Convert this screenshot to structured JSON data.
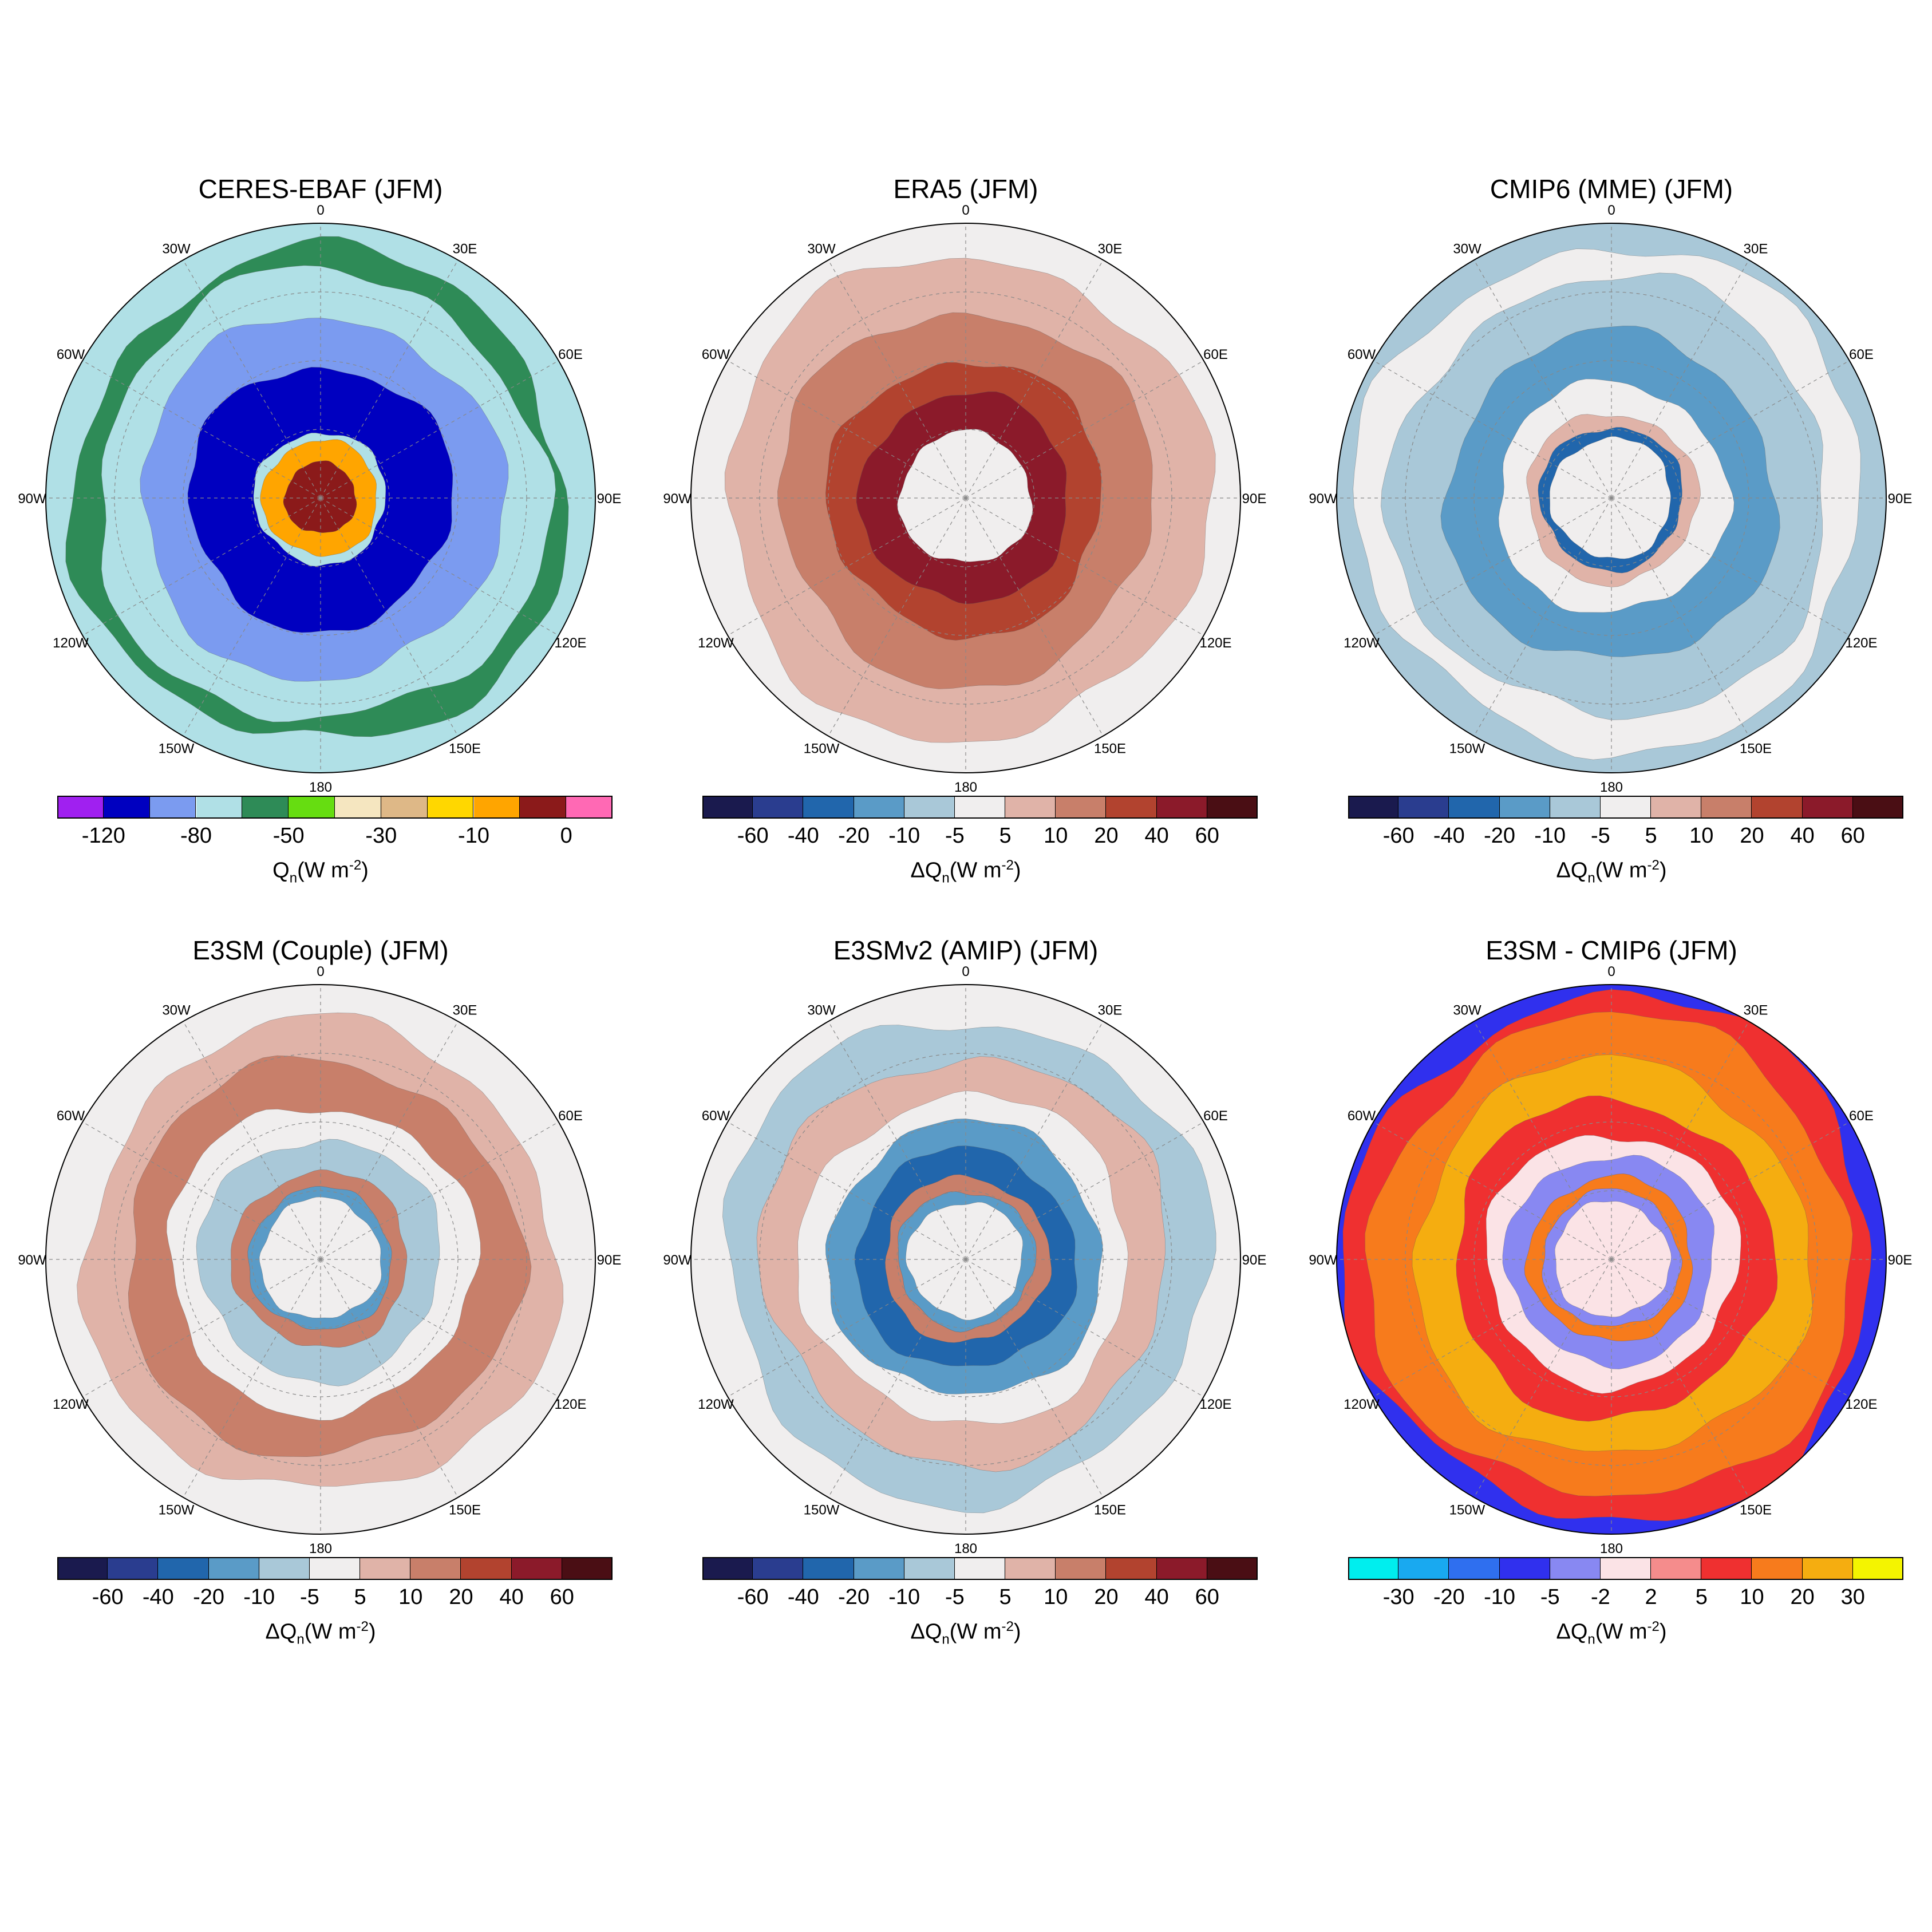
{
  "panels": [
    {
      "id": "ceres",
      "title": "CERES-EBAF  (JFM)",
      "units_prefix": "",
      "colors": [
        "#a020f0",
        "#0000c0",
        "#7b9bf0",
        "#b0e0e6",
        "#2e8b57",
        "#66dd11",
        "#f5e6c0",
        "#deb887",
        "#ffd700",
        "#ffa500",
        "#8b1a1a",
        "#ff69b4"
      ],
      "ticks": [
        {
          "label": "-120",
          "at": 1
        },
        {
          "label": "-80",
          "at": 3
        },
        {
          "label": "-50",
          "at": 5
        },
        {
          "label": "-30",
          "at": 7
        },
        {
          "label": "-10",
          "at": 9
        },
        {
          "label": "0",
          "at": 11
        }
      ],
      "rings": [
        {
          "r": 1.0,
          "c": "#b0e0e6"
        },
        {
          "r": 0.9,
          "c": "#2e8b57"
        },
        {
          "r": 0.82,
          "c": "#b0e0e6"
        },
        {
          "r": 0.66,
          "c": "#7b9bf0"
        },
        {
          "r": 0.48,
          "c": "#0000c0"
        },
        {
          "r": 0.24,
          "c": "#b0e0e6"
        },
        {
          "r": 0.21,
          "c": "#ffa500"
        },
        {
          "r": 0.13,
          "c": "#8b1a1a"
        }
      ]
    },
    {
      "id": "era5",
      "title": "ERA5  (JFM)",
      "units_prefix": "Δ",
      "colors": [
        "#1a1a4e",
        "#2a3d8f",
        "#2166ac",
        "#5a9bc7",
        "#a9c8d8",
        "#f0eeee",
        "#e0b3a8",
        "#c87f6a",
        "#b2432f",
        "#8b1a2a",
        "#4a0e14"
      ],
      "ticks": [
        {
          "label": "-60",
          "at": 1
        },
        {
          "label": "-40",
          "at": 2
        },
        {
          "label": "-20",
          "at": 3
        },
        {
          "label": "-10",
          "at": 4
        },
        {
          "label": "-5",
          "at": 5
        },
        {
          "label": "5",
          "at": 6
        },
        {
          "label": "10",
          "at": 7
        },
        {
          "label": "20",
          "at": 8
        },
        {
          "label": "40",
          "at": 9
        },
        {
          "label": "60",
          "at": 10
        }
      ],
      "rings": [
        {
          "r": 1.0,
          "c": "#f0eeee"
        },
        {
          "r": 0.88,
          "c": "#e0b3a8"
        },
        {
          "r": 0.68,
          "c": "#c87f6a"
        },
        {
          "r": 0.5,
          "c": "#b2432f"
        },
        {
          "r": 0.38,
          "c": "#8b1a2a"
        },
        {
          "r": 0.24,
          "c": "#f0eeee"
        }
      ]
    },
    {
      "id": "cmip6",
      "title": "CMIP6 (MME)  (JFM)",
      "units_prefix": "Δ",
      "colors": [
        "#1a1a4e",
        "#2a3d8f",
        "#2166ac",
        "#5a9bc7",
        "#a9c8d8",
        "#f0eeee",
        "#e0b3a8",
        "#c87f6a",
        "#b2432f",
        "#8b1a2a",
        "#4a0e14"
      ],
      "ticks": [
        {
          "label": "-60",
          "at": 1
        },
        {
          "label": "-40",
          "at": 2
        },
        {
          "label": "-20",
          "at": 3
        },
        {
          "label": "-10",
          "at": 4
        },
        {
          "label": "-5",
          "at": 5
        },
        {
          "label": "5",
          "at": 6
        },
        {
          "label": "10",
          "at": 7
        },
        {
          "label": "20",
          "at": 8
        },
        {
          "label": "40",
          "at": 9
        },
        {
          "label": "60",
          "at": 10
        }
      ],
      "rings": [
        {
          "r": 1.0,
          "c": "#a9c8d8"
        },
        {
          "r": 0.92,
          "c": "#f0eeee"
        },
        {
          "r": 0.8,
          "c": "#a9c8d8"
        },
        {
          "r": 0.6,
          "c": "#5a9bc7"
        },
        {
          "r": 0.42,
          "c": "#f0eeee"
        },
        {
          "r": 0.31,
          "c": "#e0b3a8"
        },
        {
          "r": 0.26,
          "c": "#2166ac"
        },
        {
          "r": 0.22,
          "c": "#f0eeee"
        }
      ]
    },
    {
      "id": "e3sm",
      "title": "E3SM (Couple)  (JFM)",
      "units_prefix": "Δ",
      "colors": [
        "#1a1a4e",
        "#2a3d8f",
        "#2166ac",
        "#5a9bc7",
        "#a9c8d8",
        "#f0eeee",
        "#e0b3a8",
        "#c87f6a",
        "#b2432f",
        "#8b1a2a",
        "#4a0e14"
      ],
      "ticks": [
        {
          "label": "-60",
          "at": 1
        },
        {
          "label": "-40",
          "at": 2
        },
        {
          "label": "-20",
          "at": 3
        },
        {
          "label": "-10",
          "at": 4
        },
        {
          "label": "-5",
          "at": 5
        },
        {
          "label": "5",
          "at": 6
        },
        {
          "label": "10",
          "at": 7
        },
        {
          "label": "20",
          "at": 8
        },
        {
          "label": "40",
          "at": 9
        },
        {
          "label": "60",
          "at": 10
        }
      ],
      "rings": [
        {
          "r": 1.0,
          "c": "#f0eeee"
        },
        {
          "r": 0.86,
          "c": "#e0b3a8"
        },
        {
          "r": 0.72,
          "c": "#c87f6a"
        },
        {
          "r": 0.56,
          "c": "#f0eeee"
        },
        {
          "r": 0.44,
          "c": "#a9c8d8"
        },
        {
          "r": 0.32,
          "c": "#c87f6a"
        },
        {
          "r": 0.26,
          "c": "#5a9bc7"
        },
        {
          "r": 0.22,
          "c": "#f0eeee"
        }
      ]
    },
    {
      "id": "e3smv2",
      "title": "E3SMv2 (AMIP)  (JFM)",
      "units_prefix": "Δ",
      "colors": [
        "#1a1a4e",
        "#2a3d8f",
        "#2166ac",
        "#5a9bc7",
        "#a9c8d8",
        "#f0eeee",
        "#e0b3a8",
        "#c87f6a",
        "#b2432f",
        "#8b1a2a",
        "#4a0e14"
      ],
      "ticks": [
        {
          "label": "-60",
          "at": 1
        },
        {
          "label": "-40",
          "at": 2
        },
        {
          "label": "-20",
          "at": 3
        },
        {
          "label": "-10",
          "at": 4
        },
        {
          "label": "-5",
          "at": 5
        },
        {
          "label": "5",
          "at": 6
        },
        {
          "label": "10",
          "at": 7
        },
        {
          "label": "20",
          "at": 8
        },
        {
          "label": "40",
          "at": 9
        },
        {
          "label": "60",
          "at": 10
        }
      ],
      "rings": [
        {
          "r": 1.0,
          "c": "#f0eeee"
        },
        {
          "r": 0.88,
          "c": "#a9c8d8"
        },
        {
          "r": 0.74,
          "c": "#e0b3a8"
        },
        {
          "r": 0.6,
          "c": "#f0eeee"
        },
        {
          "r": 0.5,
          "c": "#5a9bc7"
        },
        {
          "r": 0.4,
          "c": "#2166ac"
        },
        {
          "r": 0.3,
          "c": "#c87f6a"
        },
        {
          "r": 0.25,
          "c": "#5a9bc7"
        },
        {
          "r": 0.21,
          "c": "#f0eeee"
        }
      ]
    },
    {
      "id": "diff",
      "title": "E3SM - CMIP6  (JFM)",
      "units_prefix": "Δ",
      "colors": [
        "#00eeee",
        "#19a9f0",
        "#2f6fef",
        "#3030ee",
        "#8888f2",
        "#fbe3e6",
        "#f58c8c",
        "#ef3030",
        "#f77b1c",
        "#f5ad10",
        "#f4f400"
      ],
      "ticks": [
        {
          "label": "-30",
          "at": 1
        },
        {
          "label": "-20",
          "at": 2
        },
        {
          "label": "-10",
          "at": 3
        },
        {
          "label": "-5",
          "at": 4
        },
        {
          "label": "-2",
          "at": 5
        },
        {
          "label": "2",
          "at": 6
        },
        {
          "label": "5",
          "at": 7
        },
        {
          "label": "10",
          "at": 8
        },
        {
          "label": "20",
          "at": 9
        },
        {
          "label": "30",
          "at": 10
        }
      ],
      "rings": [
        {
          "r": 1.0,
          "c": "#3030ee"
        },
        {
          "r": 0.96,
          "c": "#ef3030"
        },
        {
          "r": 0.88,
          "c": "#f77b1c"
        },
        {
          "r": 0.72,
          "c": "#f5ad10"
        },
        {
          "r": 0.58,
          "c": "#ef3030"
        },
        {
          "r": 0.46,
          "c": "#fbe3e6"
        },
        {
          "r": 0.38,
          "c": "#8888f2"
        },
        {
          "r": 0.3,
          "c": "#f77b1c"
        },
        {
          "r": 0.25,
          "c": "#8888f2"
        },
        {
          "r": 0.21,
          "c": "#fbe3e6"
        }
      ]
    }
  ],
  "lon_labels": {
    "deg0": "0",
    "deg30e": "30E",
    "deg60e": "60E",
    "deg90e": "90E",
    "deg120e": "120E",
    "deg150e": "150E",
    "deg180": "180",
    "deg150w": "150W",
    "deg120w": "120W",
    "deg90w": "90W",
    "deg60w": "60W",
    "deg30w": "30W"
  },
  "units": {
    "symbol": "Q",
    "subscript": "n",
    "unit_base": "(W m",
    "unit_exp": "-2",
    "unit_close": ")"
  }
}
